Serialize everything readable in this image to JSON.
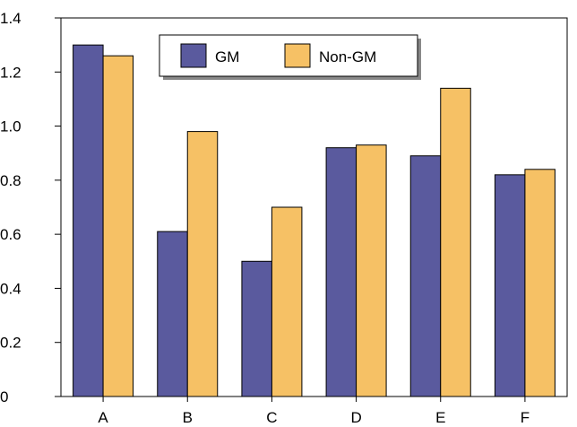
{
  "chart_data": {
    "type": "bar",
    "categories": [
      "A",
      "B",
      "C",
      "D",
      "E",
      "F"
    ],
    "series": [
      {
        "name": "GM",
        "values": [
          1.3,
          0.61,
          0.5,
          0.92,
          0.89,
          0.82
        ],
        "color": "#5a5a9e"
      },
      {
        "name": "Non-GM",
        "values": [
          1.26,
          0.98,
          0.7,
          0.93,
          1.14,
          0.84
        ],
        "color": "#f6c165"
      }
    ],
    "title": "",
    "xlabel": "",
    "ylabel": "",
    "ylim": [
      0,
      1.4
    ],
    "yticks": [
      "0",
      "0.2",
      "0.4",
      "0.6",
      "0.8",
      "1.0",
      "1.2",
      "1.4"
    ],
    "grid": false,
    "legend_position": "top-center"
  }
}
